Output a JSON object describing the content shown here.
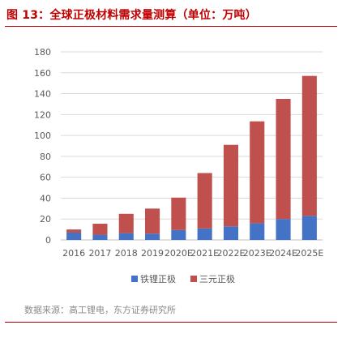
{
  "title": "图 13：全球正极材料需求量测算（单位：万吨）",
  "source": "数据来源：高工锂电，东方证券研究所",
  "colors": {
    "accent": "#c00000",
    "lfp": "#4472c4",
    "ternary": "#c0504d",
    "grid": "#d9d9d9"
  },
  "chart_data": {
    "type": "bar",
    "stacked": true,
    "categories": [
      "2016",
      "2017",
      "2018",
      "2019",
      "2020E",
      "2021E",
      "2022E",
      "2023E",
      "2024E",
      "2025E"
    ],
    "series": [
      {
        "name": "铁锂正极",
        "color": "#4472c4",
        "values": [
          7,
          5,
          6.5,
          6,
          9.5,
          11,
          13,
          16,
          20,
          23
        ]
      },
      {
        "name": "三元正极",
        "color": "#c0504d",
        "values": [
          3,
          10.5,
          18.5,
          24,
          31,
          53,
          78,
          97.5,
          115,
          134
        ]
      }
    ],
    "ylim": [
      0,
      180
    ],
    "yticks": [
      0,
      20,
      40,
      60,
      80,
      100,
      120,
      140,
      160,
      180
    ],
    "grid": true,
    "legend": "bottom"
  }
}
